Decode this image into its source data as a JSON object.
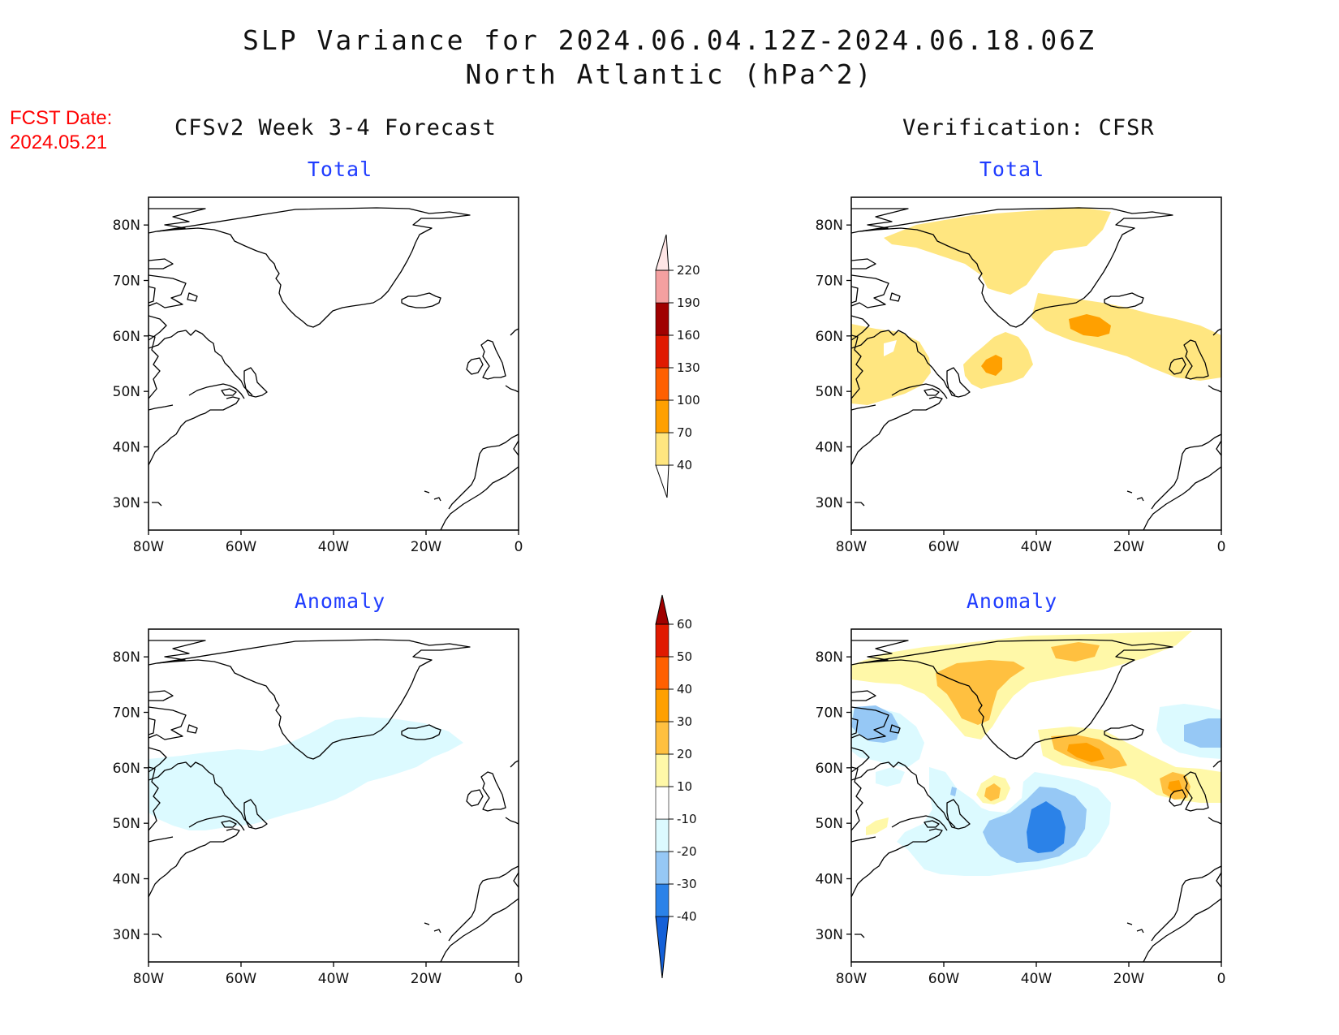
{
  "header": {
    "title_line1": "SLP Variance for 2024.06.04.12Z-2024.06.18.06Z",
    "title_line2": "North Atlantic (hPa^2)",
    "fcst_label": "FCST Date:",
    "fcst_date": "2024.05.21",
    "left_column_title": "CFSv2 Week 3-4 Forecast",
    "right_column_title": "Verification: CFSR"
  },
  "panels": {
    "forecast_total": {
      "title": "Total"
    },
    "forecast_anomaly": {
      "title": "Anomaly"
    },
    "verification_total": {
      "title": "Total"
    },
    "verification_anomaly": {
      "title": "Anomaly"
    }
  },
  "map_axes": {
    "lat_labels": [
      "80N",
      "70N",
      "60N",
      "50N",
      "40N",
      "30N"
    ],
    "lon_labels": [
      "80W",
      "60W",
      "40W",
      "20W",
      "0"
    ],
    "lat_values": [
      80,
      70,
      60,
      50,
      40,
      30
    ],
    "lon_values": [
      -80,
      -60,
      -40,
      -20,
      0
    ],
    "lon_range": [
      -80,
      0
    ],
    "lat_range": [
      25,
      85
    ]
  },
  "colorbars": {
    "total": {
      "labels": [
        "220",
        "190",
        "160",
        "130",
        "100",
        "70",
        "40"
      ],
      "levels": [
        40,
        70,
        100,
        130,
        160,
        190,
        220
      ],
      "colors": [
        "#ffe680",
        "#ffa000",
        "#ff6000",
        "#e01a00",
        "#a00000",
        "#f4a0a0",
        "#ffe6e6"
      ]
    },
    "anomaly": {
      "labels": [
        "60",
        "50",
        "40",
        "30",
        "20",
        "10",
        "-10",
        "-20",
        "-30",
        "-40"
      ],
      "levels": [
        -40,
        -30,
        -20,
        -10,
        10,
        20,
        30,
        40,
        50,
        60
      ],
      "colors": [
        "#1460d8",
        "#2b82e8",
        "#96c8f5",
        "#dcfaff",
        "#ffffff",
        "#fff8a8",
        "#ffc040",
        "#ffa000",
        "#ff6000",
        "#e01a00",
        "#a00000"
      ]
    }
  },
  "fill_colors": {
    "total_40_70": "#ffe680",
    "total_70_100": "#ffa000",
    "anom_10_20": "#fff8a8",
    "anom_20_30": "#ffc040",
    "anom_30_40": "#ffa000",
    "anom_m10_m20": "#dcfaff",
    "anom_m20_m30": "#96c8f5",
    "anom_m30_m40": "#2b82e8"
  }
}
